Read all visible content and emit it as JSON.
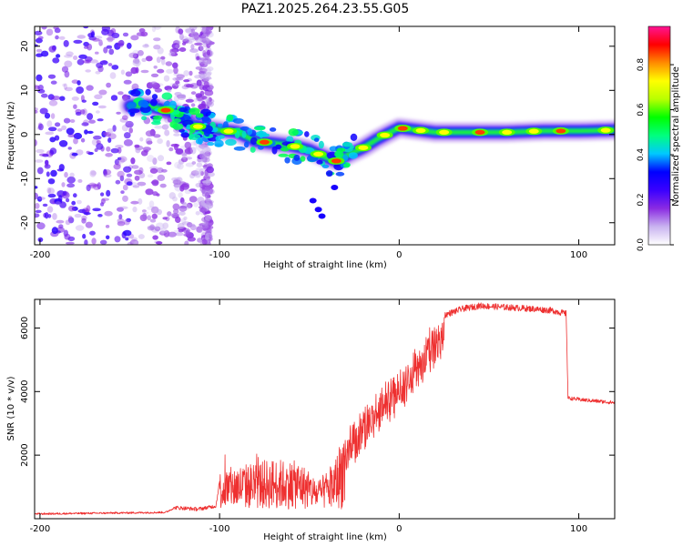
{
  "title": "PAZ1.2025.264.23.55.G05",
  "chart_data": [
    {
      "type": "heatmap",
      "title": "PAZ1.2025.264.23.55.G05",
      "xlabel": "Height of straight line (km)",
      "ylabel": "Frequency (Hz)",
      "xlim": [
        -203,
        120
      ],
      "ylim": [
        -25,
        24.5
      ],
      "xticks": [
        -200,
        -100,
        0,
        100
      ],
      "yticks": [
        -20,
        -10,
        0,
        10,
        20
      ],
      "xtick_labels": [
        "-200",
        "-100",
        "0",
        "100"
      ],
      "ytick_labels": [
        "-20",
        "-10",
        "0",
        "10",
        "20"
      ],
      "colorbar": {
        "label": "Normalized spectral amplitude",
        "range": [
          0,
          0.97
        ],
        "ticks": [
          0.0,
          0.2,
          0.4,
          0.6,
          0.8
        ],
        "tick_labels": [
          "0.0",
          "0.2",
          "0.4",
          "0.6",
          "0.8"
        ],
        "colormap": [
          "#ffffff",
          "#c9b3f0",
          "#8a2be2",
          "#3a00ff",
          "#0000ff",
          "#00c8ff",
          "#00ff7f",
          "#00ff00",
          "#b8ff00",
          "#ffff00",
          "#ff8c00",
          "#ff0000",
          "#ff1493"
        ]
      },
      "ridge": {
        "description_points_km_hz": [
          [
            -140,
            6.5
          ],
          [
            -125,
            5.0
          ],
          [
            -115,
            2.0
          ],
          [
            -100,
            1.0
          ],
          [
            -90,
            0.5
          ],
          [
            -80,
            -1.5
          ],
          [
            -70,
            -2.0
          ],
          [
            -60,
            -2.5
          ],
          [
            -50,
            -3.5
          ],
          [
            -42,
            -5.0
          ],
          [
            -35,
            -6.0
          ],
          [
            -28,
            -4.5
          ],
          [
            -20,
            -3.0
          ],
          [
            -12,
            -1.0
          ],
          [
            -5,
            0.5
          ],
          [
            0,
            1.5
          ],
          [
            10,
            1.0
          ],
          [
            20,
            0.5
          ],
          [
            40,
            0.5
          ],
          [
            60,
            0.5
          ],
          [
            80,
            0.8
          ],
          [
            100,
            0.8
          ],
          [
            120,
            1.0
          ]
        ],
        "peak_amplitude_points_km": [
          -130,
          -112,
          -95,
          -75,
          -58,
          -45,
          -35,
          -20,
          -8,
          2,
          12,
          25,
          45,
          60,
          75,
          90,
          115
        ]
      }
    },
    {
      "type": "line",
      "title": "",
      "xlabel": "Height of straight line (km)",
      "ylabel": "SNR (10 * v/v)",
      "xlim": [
        -203,
        120
      ],
      "ylim": [
        0,
        6900
      ],
      "xticks": [
        -200,
        -100,
        0,
        100
      ],
      "yticks": [
        2000,
        4000,
        6000
      ],
      "xtick_labels": [
        "-200",
        "-100",
        "0",
        "100"
      ],
      "ytick_labels": [
        "2000",
        "4000",
        "6000"
      ],
      "color": "#ee3030",
      "envelope_km_snr": [
        [
          -203,
          150
        ],
        [
          -130,
          200
        ],
        [
          -125,
          350
        ],
        [
          -112,
          300
        ],
        [
          -102,
          400
        ],
        [
          -100,
          1200
        ],
        [
          -90,
          1400
        ],
        [
          -70,
          1600
        ],
        [
          -55,
          1500
        ],
        [
          -45,
          900
        ],
        [
          -36,
          1500
        ],
        [
          -30,
          2800
        ],
        [
          -20,
          3400
        ],
        [
          -10,
          4000
        ],
        [
          0,
          4700
        ],
        [
          12,
          5600
        ],
        [
          25,
          6400
        ],
        [
          35,
          6600
        ],
        [
          45,
          6700
        ],
        [
          60,
          6650
        ],
        [
          75,
          6600
        ],
        [
          85,
          6550
        ],
        [
          93,
          6450
        ],
        [
          94,
          3800
        ],
        [
          100,
          3750
        ],
        [
          110,
          3700
        ],
        [
          120,
          3650
        ]
      ]
    }
  ]
}
